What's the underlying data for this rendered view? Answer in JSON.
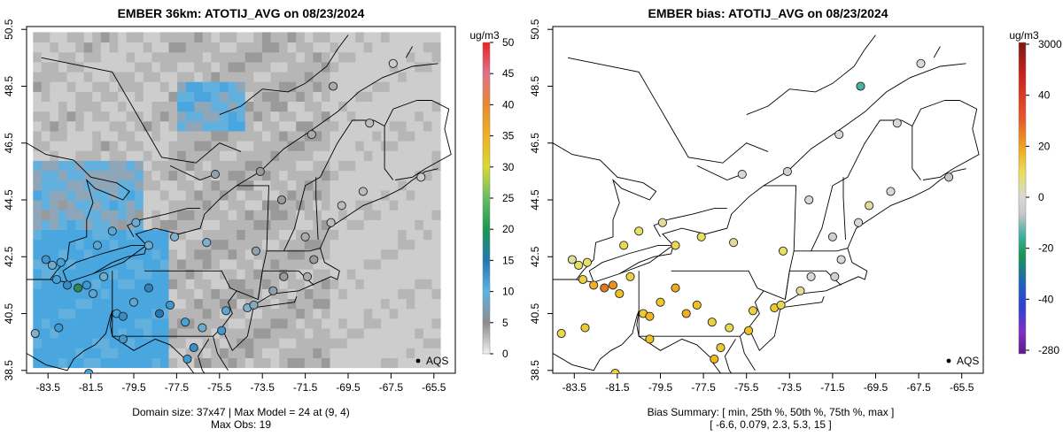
{
  "chart_data": [
    {
      "type": "heatmap",
      "title": "EMBER 36km: ATOTIJ_AVG on 08/23/2024",
      "xlabel": "",
      "ylabel": "",
      "x_ticks": [
        "-83.5",
        "-81.5",
        "-79.5",
        "-77.5",
        "-75.5",
        "-73.5",
        "-71.5",
        "-69.5",
        "-67.5",
        "-65.5"
      ],
      "y_ticks": [
        "38.5",
        "40.5",
        "42.5",
        "44.5",
        "46.5",
        "48.5",
        "50.5"
      ],
      "xlim": [
        -84.5,
        -64.5
      ],
      "ylim": [
        38.4,
        50.6
      ],
      "colorbar": {
        "unit": "ug/m3",
        "range": [
          0,
          50
        ],
        "ticks": [
          "0",
          "5",
          "10",
          "15",
          "20",
          "25",
          "30",
          "35",
          "40",
          "45",
          "50"
        ],
        "colors": [
          "#f0f0f0",
          "#8c8c8c",
          "#5ab4e4",
          "#1f78b4",
          "#1a9850",
          "#66bd63",
          "#d9d930",
          "#f0b020",
          "#e8892e",
          "#e0708c",
          "#f02020"
        ]
      },
      "legend": "AQS",
      "legend_position": "bottom-right",
      "caption_line1": "Domain size: 37x47 | Max Model = 24 at (9, 4)",
      "caption_line2": "Max Obs: 19",
      "model_zones": [
        {
          "region": "high-inland",
          "lon": [
            -84.2,
            -77.7
          ],
          "lat": [
            38.6,
            43.3
          ],
          "value": 12
        },
        {
          "region": "mid-inland",
          "lon": [
            -84.2,
            -79.0
          ],
          "lat": [
            43.3,
            46.0
          ],
          "value": 9
        },
        {
          "region": "st-lawrence",
          "lon": [
            -77.5,
            -74.5
          ],
          "lat": [
            47.0,
            48.5
          ],
          "value": 10
        },
        {
          "region": "coast",
          "lon": [
            -77.7,
            -70.5
          ],
          "lat": [
            38.6,
            50.4
          ],
          "value": 4
        },
        {
          "region": "ocean",
          "lon": [
            -70.5,
            -65.2
          ],
          "lat": [
            38.6,
            50.4
          ],
          "value": 2
        }
      ],
      "sites": [
        {
          "lon": -83.6,
          "lat": 42.4,
          "value": 12
        },
        {
          "lon": -83.3,
          "lat": 42.2,
          "value": 9
        },
        {
          "lon": -83.1,
          "lat": 41.7,
          "value": 11
        },
        {
          "lon": -82.6,
          "lat": 41.5,
          "value": 13
        },
        {
          "lon": -82.1,
          "lat": 41.4,
          "value": 19
        },
        {
          "lon": -81.7,
          "lat": 41.5,
          "value": 12
        },
        {
          "lon": -81.4,
          "lat": 41.2,
          "value": 10
        },
        {
          "lon": -80.9,
          "lat": 41.8,
          "value": 9
        },
        {
          "lon": -80.3,
          "lat": 40.5,
          "value": 11
        },
        {
          "lon": -80.0,
          "lat": 40.4,
          "value": 13
        },
        {
          "lon": -79.5,
          "lat": 40.9,
          "value": 10
        },
        {
          "lon": -78.8,
          "lat": 41.4,
          "value": 14
        },
        {
          "lon": -78.3,
          "lat": 40.5,
          "value": 15
        },
        {
          "lon": -77.8,
          "lat": 40.8,
          "value": 12
        },
        {
          "lon": -77.1,
          "lat": 40.2,
          "value": 11
        },
        {
          "lon": -76.7,
          "lat": 39.3,
          "value": 13
        },
        {
          "lon": -76.3,
          "lat": 40.0,
          "value": 9
        },
        {
          "lon": -75.4,
          "lat": 39.9,
          "value": 12
        },
        {
          "lon": -75.2,
          "lat": 40.6,
          "value": 10
        },
        {
          "lon": -74.2,
          "lat": 40.7,
          "value": 8
        },
        {
          "lon": -73.9,
          "lat": 40.8,
          "value": 7
        },
        {
          "lon": -73.0,
          "lat": 41.3,
          "value": 6
        },
        {
          "lon": -72.5,
          "lat": 41.8,
          "value": 5
        },
        {
          "lon": -71.4,
          "lat": 41.8,
          "value": 4
        },
        {
          "lon": -71.1,
          "lat": 42.4,
          "value": 5
        },
        {
          "lon": -73.8,
          "lat": 42.7,
          "value": 6
        },
        {
          "lon": -76.1,
          "lat": 43.0,
          "value": 8
        },
        {
          "lon": -77.6,
          "lat": 43.2,
          "value": 8
        },
        {
          "lon": -78.8,
          "lat": 42.9,
          "value": 9
        },
        {
          "lon": -79.4,
          "lat": 43.7,
          "value": 9
        },
        {
          "lon": -80.5,
          "lat": 43.4,
          "value": 10
        },
        {
          "lon": -81.2,
          "lat": 42.9,
          "value": 10
        },
        {
          "lon": -82.9,
          "lat": 42.3,
          "value": 11
        },
        {
          "lon": -75.7,
          "lat": 45.4,
          "value": 6
        },
        {
          "lon": -73.6,
          "lat": 45.5,
          "value": 5
        },
        {
          "lon": -71.2,
          "lat": 46.8,
          "value": 4
        },
        {
          "lon": -72.6,
          "lat": 44.5,
          "value": 5
        },
        {
          "lon": -71.5,
          "lat": 43.2,
          "value": 4
        },
        {
          "lon": -70.3,
          "lat": 43.7,
          "value": 3
        },
        {
          "lon": -69.8,
          "lat": 44.3,
          "value": 3
        },
        {
          "lon": -68.8,
          "lat": 44.8,
          "value": 3
        },
        {
          "lon": -66.1,
          "lat": 45.3,
          "value": 2
        },
        {
          "lon": -68.5,
          "lat": 47.2,
          "value": 3
        },
        {
          "lon": -70.2,
          "lat": 48.5,
          "value": 4
        },
        {
          "lon": -67.4,
          "lat": 49.3,
          "value": 2
        },
        {
          "lon": -84.1,
          "lat": 39.8,
          "value": 8
        },
        {
          "lon": -83.0,
          "lat": 40.0,
          "value": 12
        },
        {
          "lon": -81.6,
          "lat": 38.4,
          "value": 11
        },
        {
          "lon": -80.0,
          "lat": 39.6,
          "value": 12
        },
        {
          "lon": -77.0,
          "lat": 38.9,
          "value": 12
        }
      ]
    },
    {
      "type": "heatmap",
      "title": "EMBER bias: ATOTIJ_AVG on 08/23/2024",
      "xlabel": "",
      "ylabel": "",
      "x_ticks": [
        "-83.5",
        "-81.5",
        "-79.5",
        "-77.5",
        "-75.5",
        "-73.5",
        "-71.5",
        "-69.5",
        "-67.5",
        "-65.5"
      ],
      "y_ticks": [
        "38.5",
        "40.5",
        "42.5",
        "44.5",
        "46.5",
        "48.5",
        "50.5"
      ],
      "xlim": [
        -84.5,
        -64.5
      ],
      "ylim": [
        38.4,
        50.6
      ],
      "colorbar": {
        "unit": "ug/m3",
        "ticks": [
          "3000",
          "40",
          "20",
          "0",
          "-20",
          "-40",
          "-280"
        ],
        "tick_values": [
          3000,
          40,
          20,
          0,
          -20,
          -40,
          -280
        ],
        "colors": [
          "#7a1a14",
          "#c8201e",
          "#e85a2a",
          "#f0b020",
          "#e8e060",
          "#d8d8d8",
          "#c8c8c8",
          "#40b0a0",
          "#1a9850",
          "#2060c0",
          "#3040d0",
          "#8030c0",
          "#5a1a8a"
        ]
      },
      "legend": "AQS",
      "legend_position": "bottom-right",
      "caption_line1": "Bias Summary: [ min, 25th %, 50th %, 75th %, max ]",
      "caption_line2": "[ -6.6,   0.079,   2.3,   5.3,   15 ]",
      "bias_summary": {
        "min": -6.6,
        "p25": 0.079,
        "p50": 2.3,
        "p75": 5.3,
        "max": 15
      },
      "sites": [
        {
          "lon": -83.6,
          "lat": 42.4,
          "value": 1
        },
        {
          "lon": -83.3,
          "lat": 42.2,
          "value": 2
        },
        {
          "lon": -83.1,
          "lat": 41.7,
          "value": 4
        },
        {
          "lon": -82.6,
          "lat": 41.5,
          "value": 8
        },
        {
          "lon": -82.1,
          "lat": 41.4,
          "value": 15
        },
        {
          "lon": -81.7,
          "lat": 41.5,
          "value": 12
        },
        {
          "lon": -81.4,
          "lat": 41.2,
          "value": 6
        },
        {
          "lon": -80.9,
          "lat": 41.8,
          "value": 4
        },
        {
          "lon": -80.3,
          "lat": 40.5,
          "value": 5
        },
        {
          "lon": -80.0,
          "lat": 40.4,
          "value": 7
        },
        {
          "lon": -79.5,
          "lat": 40.9,
          "value": 5
        },
        {
          "lon": -78.8,
          "lat": 41.4,
          "value": 9
        },
        {
          "lon": -78.3,
          "lat": 40.5,
          "value": 8
        },
        {
          "lon": -77.8,
          "lat": 40.8,
          "value": 6
        },
        {
          "lon": -77.1,
          "lat": 40.2,
          "value": 4
        },
        {
          "lon": -76.7,
          "lat": 39.3,
          "value": 5
        },
        {
          "lon": -76.3,
          "lat": 40.0,
          "value": 3
        },
        {
          "lon": -75.4,
          "lat": 39.9,
          "value": 6
        },
        {
          "lon": -75.2,
          "lat": 40.6,
          "value": 4
        },
        {
          "lon": -74.2,
          "lat": 40.7,
          "value": 5
        },
        {
          "lon": -73.9,
          "lat": 40.8,
          "value": 3
        },
        {
          "lon": -73.0,
          "lat": 41.3,
          "value": 1
        },
        {
          "lon": -72.5,
          "lat": 41.8,
          "value": 0
        },
        {
          "lon": -71.4,
          "lat": 41.8,
          "value": -1
        },
        {
          "lon": -71.1,
          "lat": 42.4,
          "value": 0
        },
        {
          "lon": -73.8,
          "lat": 42.7,
          "value": 2
        },
        {
          "lon": -76.1,
          "lat": 43.0,
          "value": 1
        },
        {
          "lon": -77.6,
          "lat": 43.2,
          "value": 2
        },
        {
          "lon": -78.8,
          "lat": 42.9,
          "value": 3
        },
        {
          "lon": -79.4,
          "lat": 43.7,
          "value": 1
        },
        {
          "lon": -80.5,
          "lat": 43.4,
          "value": 2
        },
        {
          "lon": -81.2,
          "lat": 42.9,
          "value": 3
        },
        {
          "lon": -82.9,
          "lat": 42.3,
          "value": 2
        },
        {
          "lon": -75.7,
          "lat": 45.4,
          "value": 0
        },
        {
          "lon": -73.6,
          "lat": 45.5,
          "value": -1
        },
        {
          "lon": -71.2,
          "lat": 46.8,
          "value": 0
        },
        {
          "lon": -72.6,
          "lat": 44.5,
          "value": 0
        },
        {
          "lon": -71.5,
          "lat": 43.2,
          "value": -1
        },
        {
          "lon": -70.3,
          "lat": 43.7,
          "value": 0
        },
        {
          "lon": -69.8,
          "lat": 44.3,
          "value": 1
        },
        {
          "lon": -68.8,
          "lat": 44.8,
          "value": 0
        },
        {
          "lon": -66.1,
          "lat": 45.3,
          "value": -2
        },
        {
          "lon": -68.5,
          "lat": 47.2,
          "value": 0
        },
        {
          "lon": -70.2,
          "lat": 48.5,
          "value": -6.6
        },
        {
          "lon": -67.4,
          "lat": 49.3,
          "value": 0
        },
        {
          "lon": -84.1,
          "lat": 39.8,
          "value": 3
        },
        {
          "lon": -83.0,
          "lat": 40.0,
          "value": 5
        },
        {
          "lon": -81.6,
          "lat": 38.4,
          "value": 4
        },
        {
          "lon": -80.0,
          "lat": 39.6,
          "value": 6
        },
        {
          "lon": -77.0,
          "lat": 38.9,
          "value": 7
        }
      ]
    }
  ]
}
